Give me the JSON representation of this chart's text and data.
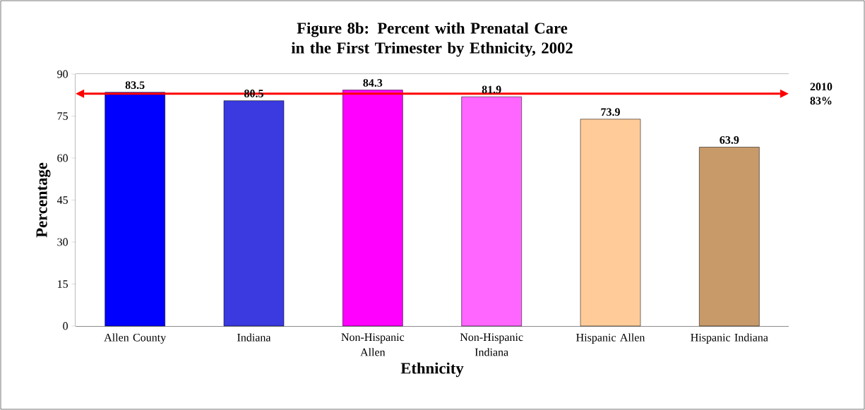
{
  "chart_data": {
    "type": "bar",
    "title": "Figure 8b:  Percent with Prenatal Care in the First Trimester by Ethnicity, 2002",
    "xlabel": "Ethnicity",
    "ylabel": "Percentage",
    "categories": [
      "Allen County",
      "Indiana",
      "Non-Hispanic Allen",
      "Non-Hispanic Indiana",
      "Hispanic Allen",
      "Hispanic Indiana"
    ],
    "values": [
      83.5,
      80.5,
      84.3,
      81.9,
      73.9,
      63.9
    ],
    "colors": [
      "#0000ff",
      "#3a3ae0",
      "#ff00ff",
      "#ff66ff",
      "#ffcc99",
      "#c89a6a"
    ],
    "ylim": [
      0,
      90
    ],
    "yticks": [
      0,
      15,
      30,
      45,
      60,
      75,
      90
    ],
    "grid": "y",
    "data_labels": true,
    "ref_lines": [
      {
        "axis": "y",
        "value": 83,
        "label": "2010 83%",
        "color": "#ff0000"
      }
    ]
  }
}
